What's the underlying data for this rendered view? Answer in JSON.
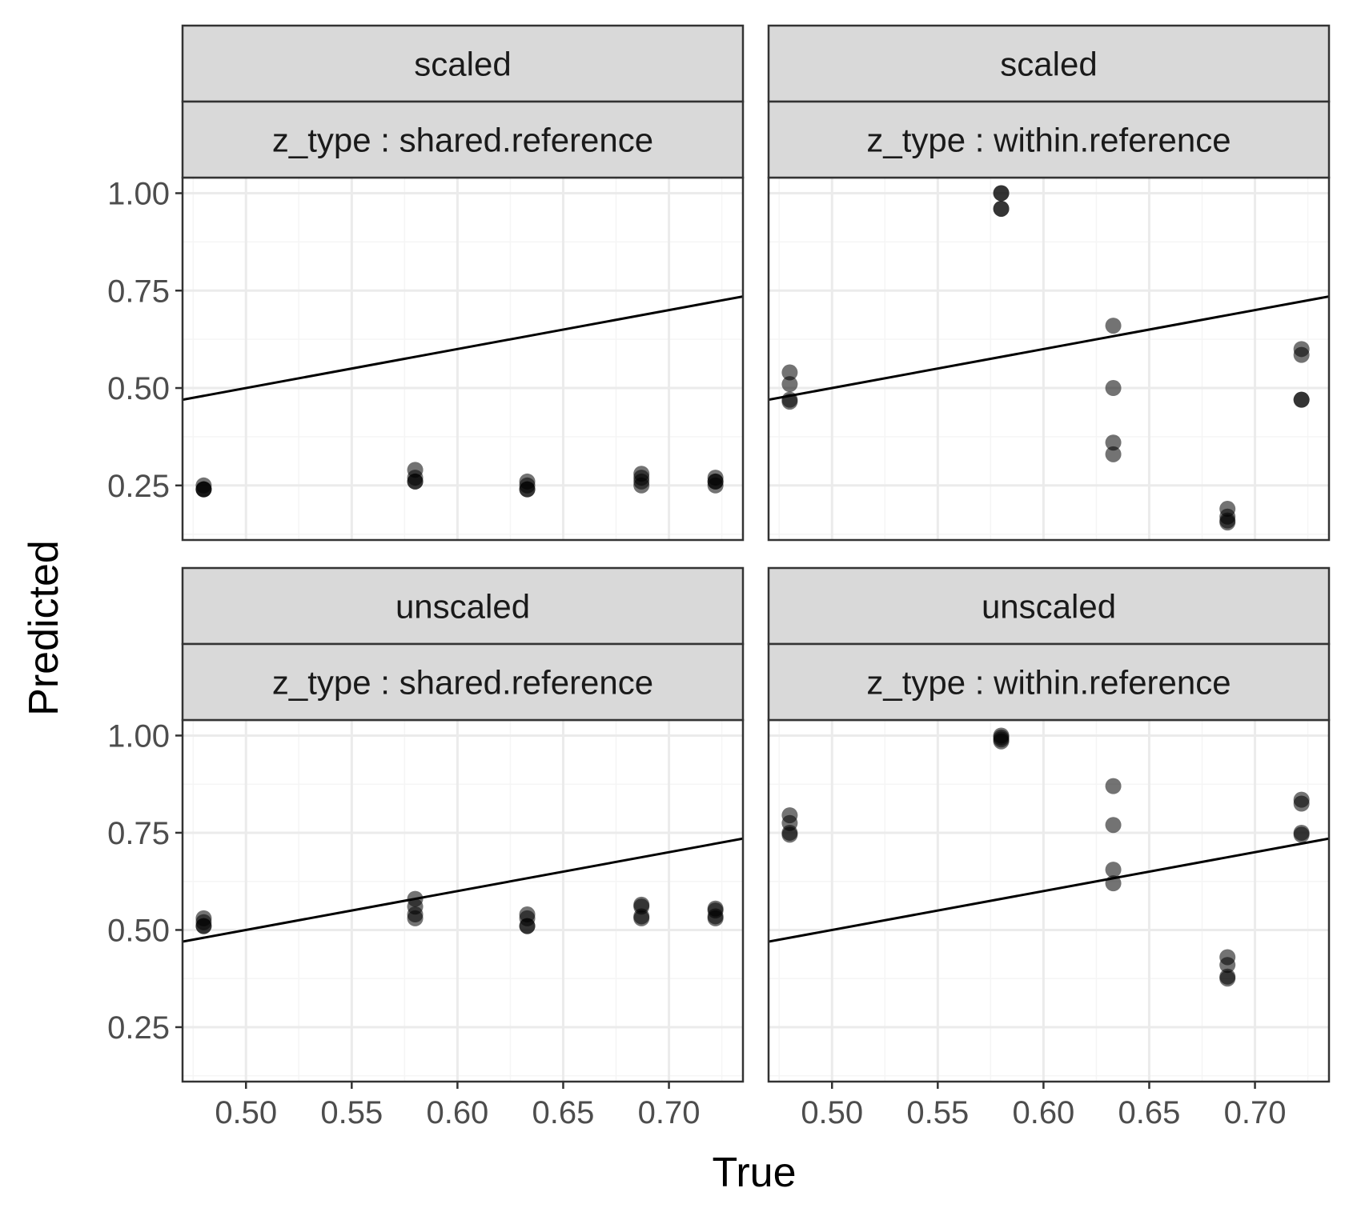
{
  "chart_data": {
    "type": "scatter",
    "xlabel": "True",
    "ylabel": "Predicted",
    "xlim": [
      0.47,
      0.735
    ],
    "ylim": [
      0.11,
      1.04
    ],
    "x_ticks": [
      "0.50",
      "0.55",
      "0.60",
      "0.65",
      "0.70"
    ],
    "y_ticks": [
      "0.25",
      "0.50",
      "0.75",
      "1.00"
    ],
    "x_tick_values": [
      0.5,
      0.55,
      0.6,
      0.65,
      0.7
    ],
    "y_tick_values": [
      0.25,
      0.5,
      0.75,
      1.0
    ],
    "reference_line": {
      "slope": 1,
      "intercept": 0
    },
    "panels": [
      {
        "strip_top": "scaled",
        "strip_bottom": "z_type : shared.reference",
        "points": [
          [
            0.48,
            0.25
          ],
          [
            0.48,
            0.24
          ],
          [
            0.48,
            0.24
          ],
          [
            0.48,
            0.24
          ],
          [
            0.58,
            0.29
          ],
          [
            0.58,
            0.27
          ],
          [
            0.58,
            0.26
          ],
          [
            0.58,
            0.26
          ],
          [
            0.633,
            0.26
          ],
          [
            0.633,
            0.25
          ],
          [
            0.633,
            0.24
          ],
          [
            0.633,
            0.24
          ],
          [
            0.687,
            0.28
          ],
          [
            0.687,
            0.27
          ],
          [
            0.687,
            0.26
          ],
          [
            0.687,
            0.25
          ],
          [
            0.722,
            0.27
          ],
          [
            0.722,
            0.26
          ],
          [
            0.722,
            0.26
          ],
          [
            0.722,
            0.25
          ]
        ]
      },
      {
        "strip_top": "scaled",
        "strip_bottom": "z_type : within.reference",
        "points": [
          [
            0.48,
            0.54
          ],
          [
            0.48,
            0.51
          ],
          [
            0.48,
            0.47
          ],
          [
            0.48,
            0.465
          ],
          [
            0.58,
            1.0
          ],
          [
            0.58,
            1.0
          ],
          [
            0.58,
            0.96
          ],
          [
            0.58,
            0.96
          ],
          [
            0.633,
            0.66
          ],
          [
            0.633,
            0.5
          ],
          [
            0.633,
            0.36
          ],
          [
            0.633,
            0.33
          ],
          [
            0.687,
            0.19
          ],
          [
            0.687,
            0.17
          ],
          [
            0.687,
            0.16
          ],
          [
            0.687,
            0.155
          ],
          [
            0.722,
            0.6
          ],
          [
            0.722,
            0.585
          ],
          [
            0.722,
            0.47
          ],
          [
            0.722,
            0.47
          ]
        ]
      },
      {
        "strip_top": "unscaled",
        "strip_bottom": "z_type : shared.reference",
        "points": [
          [
            0.48,
            0.53
          ],
          [
            0.48,
            0.52
          ],
          [
            0.48,
            0.51
          ],
          [
            0.48,
            0.51
          ],
          [
            0.58,
            0.58
          ],
          [
            0.58,
            0.56
          ],
          [
            0.58,
            0.54
          ],
          [
            0.58,
            0.53
          ],
          [
            0.633,
            0.54
          ],
          [
            0.633,
            0.53
          ],
          [
            0.633,
            0.51
          ],
          [
            0.633,
            0.51
          ],
          [
            0.687,
            0.565
          ],
          [
            0.687,
            0.56
          ],
          [
            0.687,
            0.535
          ],
          [
            0.687,
            0.53
          ],
          [
            0.722,
            0.555
          ],
          [
            0.722,
            0.55
          ],
          [
            0.722,
            0.535
          ],
          [
            0.722,
            0.53
          ]
        ]
      },
      {
        "strip_top": "unscaled",
        "strip_bottom": "z_type : within.reference",
        "points": [
          [
            0.48,
            0.795
          ],
          [
            0.48,
            0.775
          ],
          [
            0.48,
            0.75
          ],
          [
            0.48,
            0.745
          ],
          [
            0.58,
            1.0
          ],
          [
            0.58,
            0.995
          ],
          [
            0.58,
            0.99
          ],
          [
            0.58,
            0.985
          ],
          [
            0.633,
            0.87
          ],
          [
            0.633,
            0.77
          ],
          [
            0.633,
            0.655
          ],
          [
            0.633,
            0.62
          ],
          [
            0.687,
            0.43
          ],
          [
            0.687,
            0.41
          ],
          [
            0.687,
            0.38
          ],
          [
            0.687,
            0.375
          ],
          [
            0.722,
            0.835
          ],
          [
            0.722,
            0.825
          ],
          [
            0.722,
            0.75
          ],
          [
            0.722,
            0.745
          ]
        ]
      }
    ],
    "colors": {
      "point": "#000000",
      "point_opacity": 0.55,
      "line": "#000000",
      "strip_fill": "#d9d9d9",
      "panel_border": "#333333",
      "grid_major": "#ebebeb",
      "grid_minor": "#f5f5f5"
    }
  }
}
